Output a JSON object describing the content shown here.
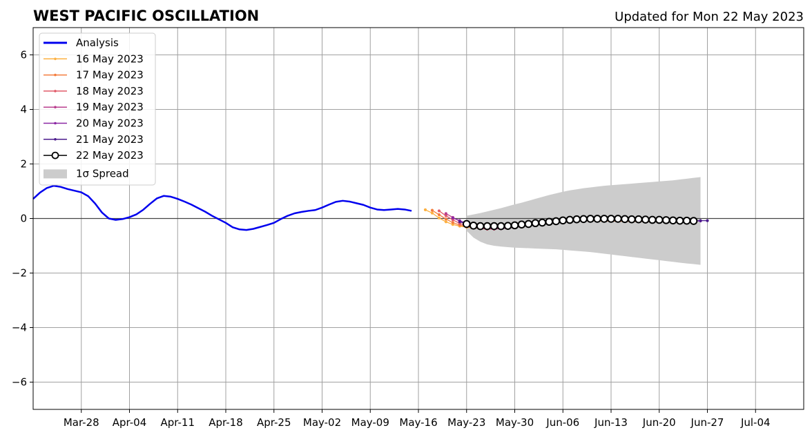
{
  "chart_data": {
    "type": "line",
    "title": "WEST PACIFIC OSCILLATION",
    "subtitle": "Updated for Mon 22 May 2023",
    "xlabel": "",
    "ylabel": "",
    "xlim": [
      "2023-03-21",
      "2023-07-11"
    ],
    "ylim": [
      -7,
      7
    ],
    "grid": true,
    "legend_position": "top-left",
    "x_ticks": [
      {
        "date": "2023-03-28",
        "label": "Mar-28"
      },
      {
        "date": "2023-04-04",
        "label": "Apr-04"
      },
      {
        "date": "2023-04-11",
        "label": "Apr-11"
      },
      {
        "date": "2023-04-18",
        "label": "Apr-18"
      },
      {
        "date": "2023-04-25",
        "label": "Apr-25"
      },
      {
        "date": "2023-05-02",
        "label": "May-02"
      },
      {
        "date": "2023-05-09",
        "label": "May-09"
      },
      {
        "date": "2023-05-16",
        "label": "May-16"
      },
      {
        "date": "2023-05-23",
        "label": "May-23"
      },
      {
        "date": "2023-05-30",
        "label": "May-30"
      },
      {
        "date": "2023-06-06",
        "label": "Jun-06"
      },
      {
        "date": "2023-06-13",
        "label": "Jun-13"
      },
      {
        "date": "2023-06-20",
        "label": "Jun-20"
      },
      {
        "date": "2023-06-27",
        "label": "Jun-27"
      },
      {
        "date": "2023-07-04",
        "label": "Jul-04"
      }
    ],
    "y_ticks": [
      {
        "value": 6,
        "label": "6"
      },
      {
        "value": 4,
        "label": "4"
      },
      {
        "value": 2,
        "label": "2"
      },
      {
        "value": 0,
        "label": "0"
      },
      {
        "value": -2,
        "label": "−2"
      },
      {
        "value": -4,
        "label": "−4"
      },
      {
        "value": -6,
        "label": "−6"
      }
    ],
    "analysis": {
      "name": "Analysis",
      "color": "#0000ee",
      "start_date": "2023-03-21",
      "values": [
        0.72,
        0.95,
        1.12,
        1.2,
        1.16,
        1.08,
        1.02,
        0.96,
        0.82,
        0.55,
        0.22,
        0.0,
        -0.05,
        -0.02,
        0.05,
        0.15,
        0.32,
        0.54,
        0.74,
        0.83,
        0.8,
        0.72,
        0.62,
        0.51,
        0.38,
        0.25,
        0.1,
        -0.03,
        -0.16,
        -0.32,
        -0.4,
        -0.42,
        -0.38,
        -0.31,
        -0.24,
        -0.16,
        -0.02,
        0.1,
        0.19,
        0.24,
        0.28,
        0.31,
        0.4,
        0.51,
        0.61,
        0.65,
        0.62,
        0.56,
        0.5,
        0.4,
        0.33,
        0.31,
        0.33,
        0.35,
        0.33,
        0.28
      ]
    },
    "forecasts": [
      {
        "name": "16 May 2023",
        "color": "#fcb040",
        "start_date": "2023-05-17",
        "values": [
          0.32,
          0.2,
          0.02,
          -0.12,
          -0.22,
          -0.28,
          -0.32,
          -0.34,
          -0.35,
          -0.35,
          -0.34,
          -0.32,
          -0.3,
          -0.28,
          -0.25,
          -0.22,
          -0.19,
          -0.16,
          -0.14,
          -0.12,
          -0.1,
          -0.09,
          -0.08,
          -0.08,
          -0.08,
          -0.09,
          -0.09,
          -0.09,
          -0.1,
          -0.1,
          -0.11,
          -0.11,
          -0.11,
          -0.12,
          -0.12,
          -0.12,
          -0.12
        ]
      },
      {
        "name": "17 May 2023",
        "color": "#f47c3c",
        "start_date": "2023-05-18",
        "values": [
          0.3,
          0.14,
          -0.02,
          -0.15,
          -0.24,
          -0.3,
          -0.34,
          -0.36,
          -0.37,
          -0.36,
          -0.34,
          -0.32,
          -0.29,
          -0.26,
          -0.23,
          -0.2,
          -0.17,
          -0.15,
          -0.13,
          -0.11,
          -0.1,
          -0.09,
          -0.08,
          -0.08,
          -0.08,
          -0.09,
          -0.09,
          -0.1,
          -0.1,
          -0.1,
          -0.11,
          -0.11,
          -0.11,
          -0.12,
          -0.12,
          -0.12,
          -0.12
        ]
      },
      {
        "name": "18 May 2023",
        "color": "#e15a68",
        "start_date": "2023-05-19",
        "values": [
          0.28,
          0.1,
          -0.05,
          -0.18,
          -0.27,
          -0.33,
          -0.37,
          -0.39,
          -0.39,
          -0.37,
          -0.35,
          -0.32,
          -0.29,
          -0.26,
          -0.23,
          -0.2,
          -0.17,
          -0.14,
          -0.12,
          -0.1,
          -0.09,
          -0.08,
          -0.07,
          -0.07,
          -0.08,
          -0.08,
          -0.08,
          -0.09,
          -0.09,
          -0.1,
          -0.1,
          -0.1,
          -0.11,
          -0.11,
          -0.11,
          -0.11,
          -0.11
        ]
      },
      {
        "name": "19 May 2023",
        "color": "#b93d8e",
        "start_date": "2023-05-20",
        "values": [
          0.18,
          0.04,
          -0.1,
          -0.21,
          -0.29,
          -0.34,
          -0.37,
          -0.38,
          -0.37,
          -0.35,
          -0.32,
          -0.29,
          -0.26,
          -0.23,
          -0.2,
          -0.17,
          -0.14,
          -0.12,
          -0.1,
          -0.08,
          -0.07,
          -0.06,
          -0.06,
          -0.06,
          -0.07,
          -0.07,
          -0.07,
          -0.08,
          -0.08,
          -0.09,
          -0.09,
          -0.09,
          -0.1,
          -0.1,
          -0.1,
          -0.1,
          -0.1
        ]
      },
      {
        "name": "20 May 2023",
        "color": "#8a26a3",
        "start_date": "2023-05-21",
        "values": [
          0.02,
          -0.08,
          -0.18,
          -0.26,
          -0.31,
          -0.34,
          -0.35,
          -0.35,
          -0.34,
          -0.32,
          -0.29,
          -0.26,
          -0.23,
          -0.2,
          -0.17,
          -0.14,
          -0.12,
          -0.1,
          -0.08,
          -0.07,
          -0.06,
          -0.05,
          -0.05,
          -0.05,
          -0.06,
          -0.06,
          -0.07,
          -0.07,
          -0.07,
          -0.08,
          -0.08,
          -0.08,
          -0.09,
          -0.09,
          -0.09,
          -0.09,
          -0.09
        ]
      },
      {
        "name": "21 May 2023",
        "color": "#4a1a8c",
        "start_date": "2023-05-22",
        "values": [
          -0.12,
          -0.2,
          -0.26,
          -0.29,
          -0.3,
          -0.3,
          -0.29,
          -0.27,
          -0.25,
          -0.22,
          -0.2,
          -0.17,
          -0.14,
          -0.12,
          -0.1,
          -0.08,
          -0.07,
          -0.05,
          -0.04,
          -0.04,
          -0.03,
          -0.03,
          -0.03,
          -0.04,
          -0.04,
          -0.05,
          -0.05,
          -0.06,
          -0.06,
          -0.07,
          -0.07,
          -0.07,
          -0.08,
          -0.08,
          -0.08,
          -0.08,
          -0.08
        ]
      },
      {
        "name": "22 May 2023",
        "color": "#000000",
        "start_date": "2023-05-23",
        "values": [
          -0.2,
          -0.26,
          -0.28,
          -0.28,
          -0.28,
          -0.28,
          -0.27,
          -0.25,
          -0.22,
          -0.2,
          -0.17,
          -0.15,
          -0.12,
          -0.1,
          -0.07,
          -0.05,
          -0.03,
          -0.02,
          -0.01,
          -0.01,
          -0.01,
          -0.01,
          -0.01,
          -0.02,
          -0.03,
          -0.03,
          -0.04,
          -0.05,
          -0.05,
          -0.06,
          -0.07,
          -0.08,
          -0.08,
          -0.09
        ]
      }
    ],
    "spread": {
      "name": "1σ Spread",
      "color": "#cccccc",
      "start_date": "2023-05-23",
      "upper": [
        0.1,
        0.15,
        0.2,
        0.26,
        0.32,
        0.38,
        0.45,
        0.52,
        0.58,
        0.65,
        0.72,
        0.79,
        0.86,
        0.92,
        0.98,
        1.03,
        1.07,
        1.11,
        1.14,
        1.17,
        1.2,
        1.22,
        1.24,
        1.26,
        1.28,
        1.3,
        1.32,
        1.34,
        1.36,
        1.38,
        1.4,
        1.43,
        1.46,
        1.49,
        1.52
      ],
      "lower": [
        -0.45,
        -0.7,
        -0.85,
        -0.95,
        -1.0,
        -1.03,
        -1.05,
        -1.07,
        -1.08,
        -1.09,
        -1.1,
        -1.11,
        -1.12,
        -1.13,
        -1.15,
        -1.17,
        -1.19,
        -1.21,
        -1.23,
        -1.26,
        -1.29,
        -1.32,
        -1.35,
        -1.38,
        -1.41,
        -1.44,
        -1.47,
        -1.5,
        -1.53,
        -1.56,
        -1.59,
        -1.62,
        -1.65,
        -1.67,
        -1.7
      ]
    }
  }
}
